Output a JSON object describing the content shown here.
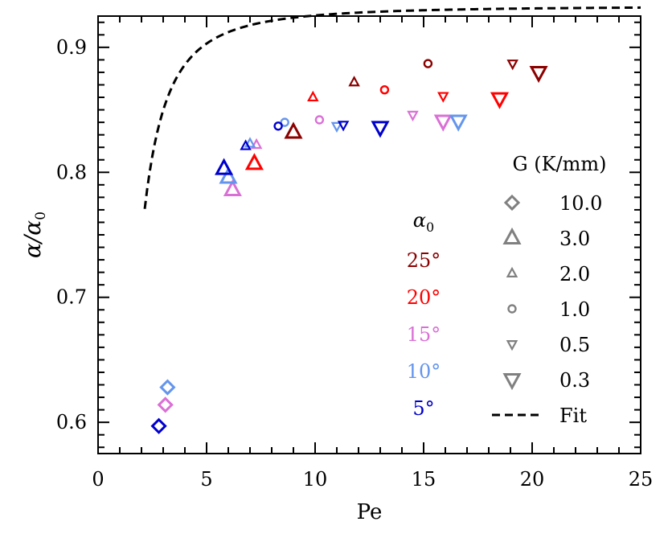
{
  "chart_data": {
    "type": "scatter",
    "title": "",
    "xlabel": "Pe",
    "ylabel": "α/α",
    "ylabel_sub": "0",
    "xlim": [
      0,
      25
    ],
    "ylim": [
      0.575,
      0.925
    ],
    "x_ticks": [
      {
        "value": 0,
        "label": "0"
      },
      {
        "value": 5,
        "label": "5"
      },
      {
        "value": 10,
        "label": "10"
      },
      {
        "value": 15,
        "label": "15"
      },
      {
        "value": 20,
        "label": "20"
      },
      {
        "value": 25,
        "label": "25"
      }
    ],
    "y_ticks": [
      {
        "value": 0.6,
        "label": "0.6"
      },
      {
        "value": 0.7,
        "label": "0.7"
      },
      {
        "value": 0.8,
        "label": "0.8"
      },
      {
        "value": 0.9,
        "label": "0.9"
      }
    ],
    "alpha_legend": {
      "title": "α",
      "title_sub": "0",
      "entries": [
        {
          "label": "25°",
          "color": "#8b0000"
        },
        {
          "label": "20°",
          "color": "#ff0000"
        },
        {
          "label": "15°",
          "color": "#da70d6"
        },
        {
          "label": "10°",
          "color": "#6495ed"
        },
        {
          "label": "5°",
          "color": "#0000cd"
        }
      ]
    },
    "g_legend": {
      "title": "G (K/mm)",
      "color": "#808080",
      "entries": [
        {
          "label": "10.0",
          "marker": "diamond"
        },
        {
          "label": "3.0",
          "marker": "triangle-up-large"
        },
        {
          "label": "2.0",
          "marker": "triangle-up-small"
        },
        {
          "label": "1.0",
          "marker": "circle"
        },
        {
          "label": "0.5",
          "marker": "triangle-down-small"
        },
        {
          "label": "0.3",
          "marker": "triangle-down-large"
        },
        {
          "label": "Fit",
          "marker": "dashed-line"
        }
      ]
    },
    "fit": {
      "a": 0.933,
      "b": 0.75,
      "x_start": 2.15,
      "x_end": 25
    },
    "series": [
      {
        "name": "25°",
        "color": "#8b0000",
        "points": [
          {
            "x": 9.0,
            "y": 0.832,
            "marker": "triangle-up-large"
          },
          {
            "x": 11.8,
            "y": 0.872,
            "marker": "triangle-up-small"
          },
          {
            "x": 15.2,
            "y": 0.887,
            "marker": "circle"
          },
          {
            "x": 19.1,
            "y": 0.887,
            "marker": "triangle-down-small"
          },
          {
            "x": 20.3,
            "y": 0.88,
            "marker": "triangle-down-large"
          }
        ]
      },
      {
        "name": "20°",
        "color": "#ff0000",
        "points": [
          {
            "x": 7.2,
            "y": 0.807,
            "marker": "triangle-up-large"
          },
          {
            "x": 9.9,
            "y": 0.86,
            "marker": "triangle-up-small"
          },
          {
            "x": 13.2,
            "y": 0.866,
            "marker": "circle"
          },
          {
            "x": 15.9,
            "y": 0.861,
            "marker": "triangle-down-small"
          },
          {
            "x": 18.5,
            "y": 0.859,
            "marker": "triangle-down-large"
          }
        ]
      },
      {
        "name": "15°",
        "color": "#da70d6",
        "points": [
          {
            "x": 3.1,
            "y": 0.614,
            "marker": "diamond"
          },
          {
            "x": 6.2,
            "y": 0.786,
            "marker": "triangle-up-large"
          },
          {
            "x": 7.3,
            "y": 0.822,
            "marker": "triangle-up-small"
          },
          {
            "x": 10.2,
            "y": 0.842,
            "marker": "circle"
          },
          {
            "x": 14.5,
            "y": 0.846,
            "marker": "triangle-down-small"
          },
          {
            "x": 15.9,
            "y": 0.841,
            "marker": "triangle-down-large"
          }
        ]
      },
      {
        "name": "10°",
        "color": "#6495ed",
        "points": [
          {
            "x": 3.2,
            "y": 0.628,
            "marker": "diamond"
          },
          {
            "x": 6.0,
            "y": 0.796,
            "marker": "triangle-up-large"
          },
          {
            "x": 7.0,
            "y": 0.823,
            "marker": "triangle-up-small"
          },
          {
            "x": 8.6,
            "y": 0.84,
            "marker": "circle"
          },
          {
            "x": 11.0,
            "y": 0.837,
            "marker": "triangle-down-small"
          },
          {
            "x": 16.6,
            "y": 0.841,
            "marker": "triangle-down-large"
          }
        ]
      },
      {
        "name": "5°",
        "color": "#0000cd",
        "points": [
          {
            "x": 2.8,
            "y": 0.597,
            "marker": "diamond"
          },
          {
            "x": 5.8,
            "y": 0.803,
            "marker": "triangle-up-large"
          },
          {
            "x": 6.8,
            "y": 0.821,
            "marker": "triangle-up-small"
          },
          {
            "x": 8.3,
            "y": 0.837,
            "marker": "circle"
          },
          {
            "x": 11.3,
            "y": 0.838,
            "marker": "triangle-down-small"
          },
          {
            "x": 13.0,
            "y": 0.836,
            "marker": "triangle-down-large"
          }
        ]
      }
    ]
  }
}
